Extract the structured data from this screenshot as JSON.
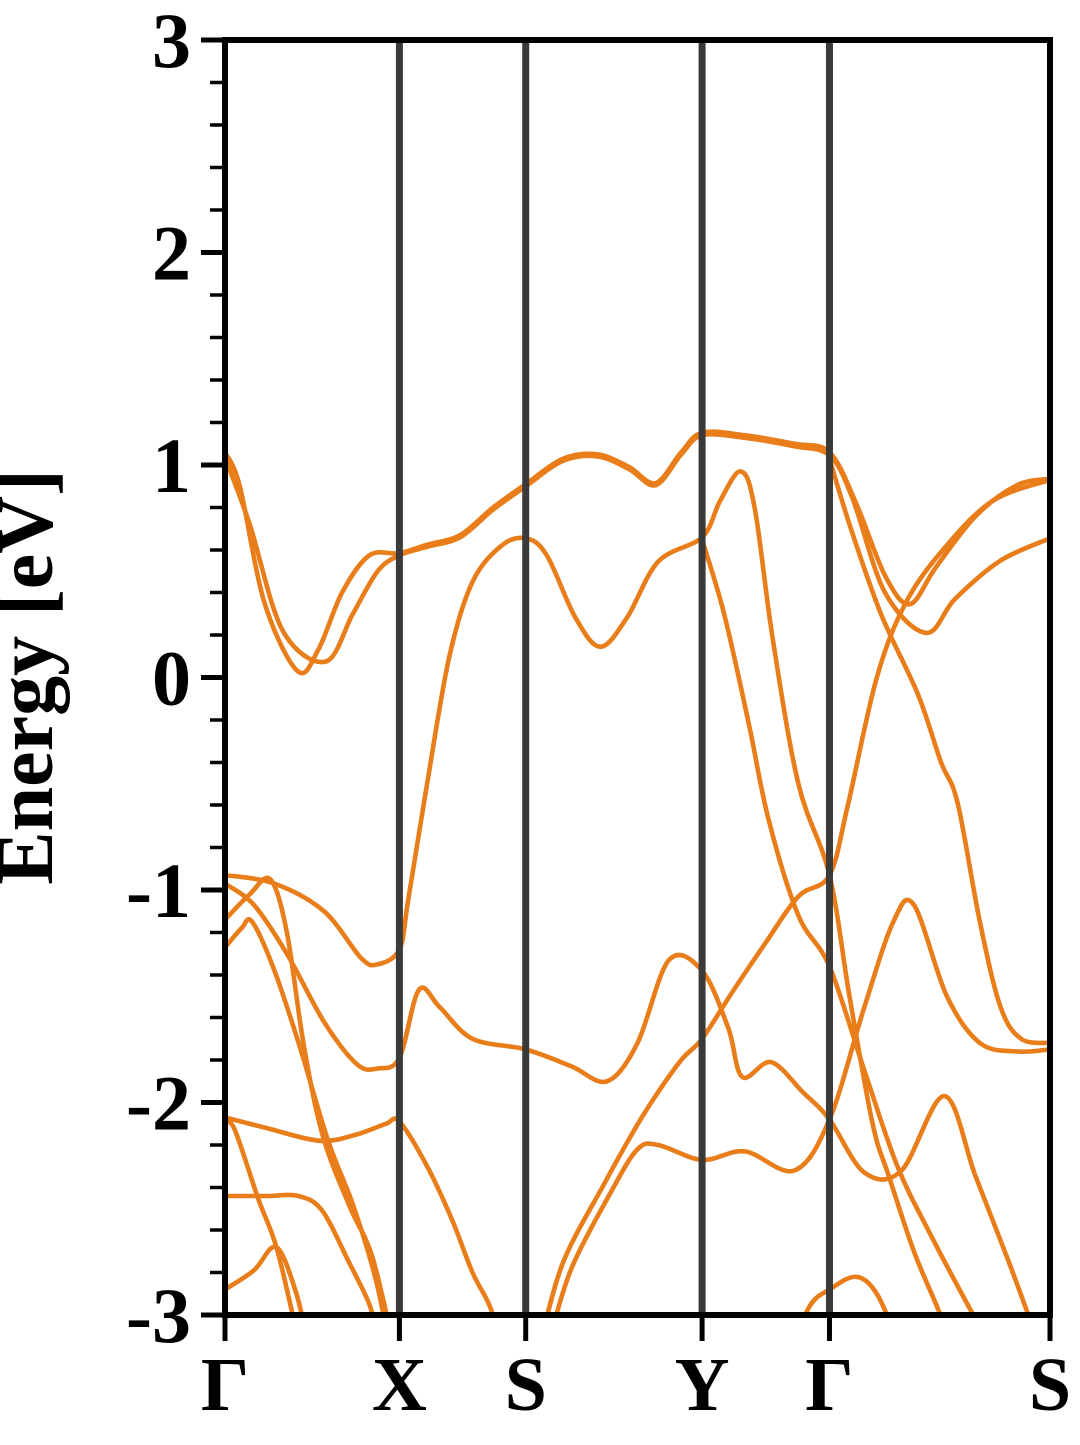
{
  "figure": {
    "kind": "electronic-band-structure-plot",
    "background": "#ffffff"
  },
  "chart_data": {
    "type": "line",
    "title": "",
    "xlabel": "",
    "ylabel": "Energy [eV]",
    "ylim": [
      -3,
      3
    ],
    "y_major_ticks": [
      3,
      2,
      1,
      0,
      -1,
      -2,
      -3
    ],
    "y_major_tick_labels": [
      "3",
      "2",
      "1",
      "0",
      "-1",
      "-2",
      "-3"
    ],
    "y_minor_tick_step": 0.2,
    "x_tick_labels": [
      "Γ",
      "X",
      "S",
      "Y",
      "Γ",
      "S"
    ],
    "x_tick_positions": [
      0,
      0.2114,
      0.3645,
      0.5783,
      0.7327,
      1.0
    ],
    "high_symmetry_lines": [
      0.2114,
      0.3645,
      0.5783,
      0.7327
    ],
    "grid": false,
    "legend_position": "none",
    "band_color": "#E87D1A",
    "symmetry_line_color": "#3A3A3A",
    "axis_color": "#000000",
    "series": [
      {
        "name": "band-01",
        "points": [
          [
            0,
            1.06
          ],
          [
            0.018,
            0.9
          ],
          [
            0.048,
            0.35
          ],
          [
            0.088,
            0.03
          ],
          [
            0.113,
            0.13
          ],
          [
            0.142,
            0.4
          ],
          [
            0.175,
            0.575
          ],
          [
            0.2114,
            0.585
          ],
          [
            0.245,
            0.625
          ],
          [
            0.285,
            0.67
          ],
          [
            0.325,
            0.8
          ],
          [
            0.3645,
            0.91
          ],
          [
            0.41,
            1.03
          ],
          [
            0.452,
            1.05
          ],
          [
            0.49,
            0.99
          ],
          [
            0.522,
            0.915
          ],
          [
            0.553,
            1.06
          ],
          [
            0.5783,
            1.152
          ],
          [
            0.63,
            1.14
          ],
          [
            0.69,
            1.1
          ],
          [
            0.7327,
            1.06
          ],
          [
            0.765,
            0.82
          ],
          [
            0.8,
            0.48
          ],
          [
            0.83,
            0.345
          ],
          [
            0.862,
            0.52
          ],
          [
            0.91,
            0.76
          ],
          [
            0.96,
            0.905
          ],
          [
            1.0,
            0.935
          ]
        ]
      },
      {
        "name": "band-02",
        "points": [
          [
            0,
            1.035
          ],
          [
            0.03,
            0.72
          ],
          [
            0.07,
            0.22
          ],
          [
            0.122,
            0.075
          ],
          [
            0.155,
            0.3
          ],
          [
            0.185,
            0.5
          ],
          [
            0.2114,
            0.575
          ],
          [
            0.245,
            0.615
          ],
          [
            0.285,
            0.66
          ],
          [
            0.325,
            0.79
          ],
          [
            0.3645,
            0.9
          ],
          [
            0.41,
            1.02
          ],
          [
            0.452,
            1.04
          ],
          [
            0.49,
            0.98
          ],
          [
            0.522,
            0.905
          ],
          [
            0.553,
            1.05
          ],
          [
            0.5783,
            1.14
          ],
          [
            0.63,
            1.128
          ],
          [
            0.69,
            1.088
          ],
          [
            0.7327,
            1.045
          ],
          [
            0.76,
            0.85
          ],
          [
            0.8,
            0.4
          ],
          [
            0.85,
            0.21
          ],
          [
            0.885,
            0.37
          ],
          [
            0.94,
            0.55
          ],
          [
            1.0,
            0.655
          ]
        ]
      },
      {
        "name": "band-03",
        "points": [
          [
            0,
            -0.93
          ],
          [
            0.06,
            -0.97
          ],
          [
            0.12,
            -1.1
          ],
          [
            0.165,
            -1.32
          ],
          [
            0.185,
            -1.35
          ],
          [
            0.2114,
            -1.28
          ],
          [
            0.222,
            -1.05
          ],
          [
            0.245,
            -0.5
          ],
          [
            0.272,
            0.1
          ],
          [
            0.3,
            0.45
          ],
          [
            0.335,
            0.62
          ],
          [
            0.3645,
            0.655
          ],
          [
            0.39,
            0.575
          ],
          [
            0.425,
            0.28
          ],
          [
            0.455,
            0.145
          ],
          [
            0.487,
            0.28
          ],
          [
            0.525,
            0.545
          ],
          [
            0.5783,
            0.66
          ],
          [
            0.6,
            0.83
          ],
          [
            0.625,
            0.97
          ],
          [
            0.642,
            0.8
          ],
          [
            0.664,
            0.18
          ],
          [
            0.695,
            -0.5
          ],
          [
            0.7327,
            -0.93
          ],
          [
            0.757,
            -1.5
          ],
          [
            0.785,
            -2.1
          ],
          [
            0.805,
            -2.35
          ],
          [
            0.835,
            -2.7
          ],
          [
            0.862,
            -2.95
          ],
          [
            0.88,
            -3.12
          ]
        ]
      },
      {
        "name": "band-04",
        "points": [
          [
            0.5783,
            0.648
          ],
          [
            0.605,
            0.3
          ],
          [
            0.635,
            -0.22
          ],
          [
            0.659,
            -0.67
          ],
          [
            0.695,
            -1.12
          ],
          [
            0.7327,
            -1.36
          ],
          [
            0.775,
            -1.85
          ],
          [
            0.815,
            -2.3
          ],
          [
            0.855,
            -2.62
          ],
          [
            0.9,
            -2.95
          ],
          [
            0.925,
            -3.12
          ]
        ]
      },
      {
        "name": "band-05",
        "points": [
          [
            0.7327,
            1.03
          ],
          [
            0.757,
            0.72
          ],
          [
            0.795,
            0.3
          ],
          [
            0.84,
            -0.08
          ],
          [
            0.868,
            -0.4
          ],
          [
            0.888,
            -0.59
          ],
          [
            0.915,
            -1.15
          ],
          [
            0.94,
            -1.55
          ],
          [
            0.965,
            -1.7
          ],
          [
            1.0,
            -1.72
          ]
        ]
      },
      {
        "name": "band-06",
        "points": [
          [
            0.383,
            -3.12
          ],
          [
            0.41,
            -2.75
          ],
          [
            0.46,
            -2.38
          ],
          [
            0.496,
            -2.13
          ],
          [
            0.52,
            -1.98
          ],
          [
            0.553,
            -1.8
          ],
          [
            0.5783,
            -1.7
          ],
          [
            0.615,
            -1.48
          ],
          [
            0.655,
            -1.25
          ],
          [
            0.695,
            -1.03
          ],
          [
            0.7327,
            -0.93
          ],
          [
            0.755,
            -0.6
          ],
          [
            0.79,
            0.0
          ],
          [
            0.825,
            0.35
          ],
          [
            0.87,
            0.6
          ],
          [
            0.93,
            0.83
          ],
          [
            1.0,
            0.93
          ]
        ]
      },
      {
        "name": "band-07",
        "points": [
          [
            0,
            -0.97
          ],
          [
            0.035,
            -1.07
          ],
          [
            0.075,
            -1.3
          ],
          [
            0.12,
            -1.62
          ],
          [
            0.16,
            -1.82
          ],
          [
            0.185,
            -1.84
          ],
          [
            0.2114,
            -1.79
          ],
          [
            0.235,
            -1.47
          ],
          [
            0.26,
            -1.55
          ],
          [
            0.3,
            -1.7
          ],
          [
            0.3645,
            -1.75
          ],
          [
            0.42,
            -1.83
          ],
          [
            0.463,
            -1.9
          ],
          [
            0.5,
            -1.72
          ],
          [
            0.538,
            -1.33
          ],
          [
            0.5783,
            -1.38
          ],
          [
            0.61,
            -1.65
          ],
          [
            0.627,
            -1.88
          ],
          [
            0.662,
            -1.81
          ],
          [
            0.7,
            -1.95
          ],
          [
            0.7327,
            -2.08
          ],
          [
            0.775,
            -2.33
          ],
          [
            0.82,
            -2.32
          ],
          [
            0.872,
            -1.97
          ],
          [
            0.91,
            -2.35
          ],
          [
            0.95,
            -2.75
          ],
          [
            0.985,
            -3.12
          ]
        ]
      },
      {
        "name": "band-08",
        "points": [
          [
            0.393,
            -3.12
          ],
          [
            0.42,
            -2.78
          ],
          [
            0.468,
            -2.42
          ],
          [
            0.5,
            -2.22
          ],
          [
            0.525,
            -2.2
          ],
          [
            0.5783,
            -2.27
          ],
          [
            0.63,
            -2.23
          ],
          [
            0.69,
            -2.32
          ],
          [
            0.7327,
            -2.08
          ],
          [
            0.775,
            -1.55
          ],
          [
            0.81,
            -1.15
          ],
          [
            0.835,
            -1.07
          ],
          [
            0.875,
            -1.5
          ],
          [
            0.915,
            -1.72
          ],
          [
            0.96,
            -1.76
          ],
          [
            1.0,
            -1.75
          ]
        ]
      },
      {
        "name": "band-09",
        "points": [
          [
            0,
            -1.14
          ],
          [
            0.03,
            -1.02
          ],
          [
            0.055,
            -0.95
          ],
          [
            0.075,
            -1.2
          ],
          [
            0.095,
            -1.72
          ],
          [
            0.118,
            -2.15
          ],
          [
            0.15,
            -2.48
          ],
          [
            0.178,
            -2.72
          ],
          [
            0.203,
            -3.12
          ]
        ]
      },
      {
        "name": "band-10",
        "points": [
          [
            0,
            -1.27
          ],
          [
            0.02,
            -1.18
          ],
          [
            0.033,
            -1.15
          ],
          [
            0.06,
            -1.38
          ],
          [
            0.09,
            -1.73
          ],
          [
            0.125,
            -2.18
          ],
          [
            0.155,
            -2.48
          ],
          [
            0.182,
            -2.82
          ],
          [
            0.198,
            -3.12
          ]
        ]
      },
      {
        "name": "band-11",
        "points": [
          [
            0,
            -2.07
          ],
          [
            0.05,
            -2.12
          ],
          [
            0.115,
            -2.18
          ],
          [
            0.16,
            -2.15
          ],
          [
            0.195,
            -2.1
          ],
          [
            0.2114,
            -2.09
          ],
          [
            0.245,
            -2.3
          ],
          [
            0.275,
            -2.55
          ],
          [
            0.3,
            -2.8
          ],
          [
            0.32,
            -2.95
          ],
          [
            0.335,
            -3.12
          ]
        ]
      },
      {
        "name": "band-12",
        "points": [
          [
            0,
            -2.09
          ],
          [
            0.012,
            -2.13
          ],
          [
            0.04,
            -2.45
          ],
          [
            0.063,
            -2.69
          ],
          [
            0.089,
            -3.12
          ]
        ]
      },
      {
        "name": "band-13",
        "points": [
          [
            0,
            -2.44
          ],
          [
            0.05,
            -2.44
          ],
          [
            0.089,
            -2.44
          ],
          [
            0.118,
            -2.51
          ],
          [
            0.15,
            -2.75
          ],
          [
            0.175,
            -2.95
          ],
          [
            0.186,
            -3.12
          ]
        ]
      },
      {
        "name": "band-14",
        "points": [
          [
            0,
            -2.88
          ],
          [
            0.035,
            -2.79
          ],
          [
            0.062,
            -2.68
          ],
          [
            0.085,
            -2.88
          ],
          [
            0.1,
            -3.12
          ]
        ]
      },
      {
        "name": "band-15",
        "points": [
          [
            0.69,
            -3.12
          ],
          [
            0.71,
            -2.95
          ],
          [
            0.7327,
            -2.88
          ],
          [
            0.765,
            -2.82
          ],
          [
            0.79,
            -2.9
          ],
          [
            0.815,
            -3.12
          ]
        ]
      }
    ]
  }
}
